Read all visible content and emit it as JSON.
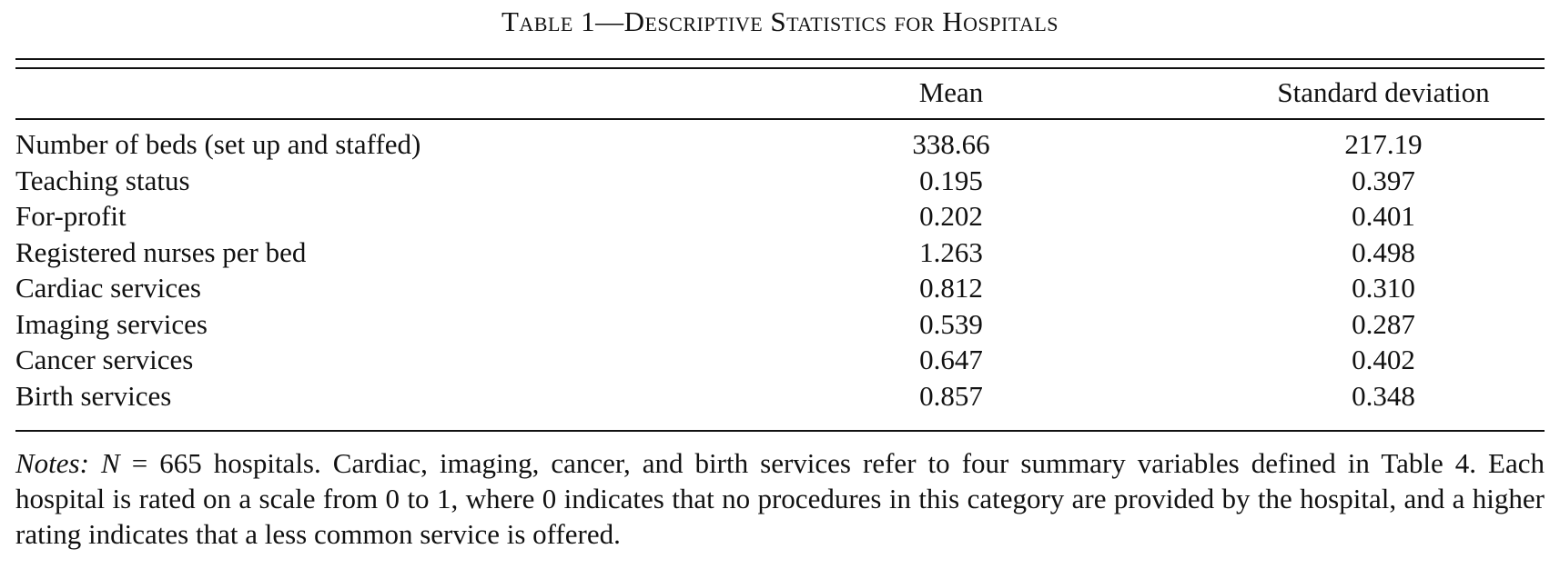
{
  "table": {
    "title": "Table 1—Descriptive Statistics for Hospitals",
    "columns": {
      "mean": "Mean",
      "sd": "Standard deviation"
    },
    "rows": [
      {
        "label": "Number of beds (set up and staffed)",
        "mean": "338.66",
        "sd": "217.19"
      },
      {
        "label": "Teaching status",
        "mean": "0.195",
        "sd": "0.397"
      },
      {
        "label": "For-profit",
        "mean": "0.202",
        "sd": "0.401"
      },
      {
        "label": "Registered nurses per bed",
        "mean": "1.263",
        "sd": "0.498"
      },
      {
        "label": "Cardiac services",
        "mean": "0.812",
        "sd": "0.310"
      },
      {
        "label": "Imaging services",
        "mean": "0.539",
        "sd": "0.287"
      },
      {
        "label": "Cancer services",
        "mean": "0.647",
        "sd": "0.402"
      },
      {
        "label": "Birth services",
        "mean": "0.857",
        "sd": "0.348"
      }
    ]
  },
  "notes": {
    "label": "Notes:",
    "n_var": "N",
    "text": " = 665 hospitals. Cardiac, imaging, cancer, and birth services refer to four summary variables defined in Table 4. Each hospital is rated on a scale from 0 to 1, where 0 indicates that no procedures in this category are provided by the hospital, and a higher rating indicates that a less common service is offered."
  }
}
